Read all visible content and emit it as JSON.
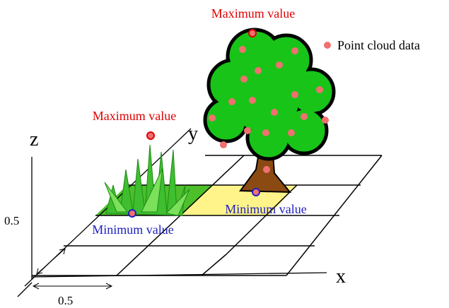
{
  "labels": {
    "tree_maximum": "Maximum value",
    "grass_maximum": "Maximum value",
    "tree_minimum": "Minimum value",
    "grass_minimum": "Minimum value",
    "legend": "Point cloud data"
  },
  "axes": {
    "x": "x",
    "y": "y",
    "z": "z"
  },
  "scale": {
    "vertical": "0.5",
    "horizontal": "0.5"
  }
}
